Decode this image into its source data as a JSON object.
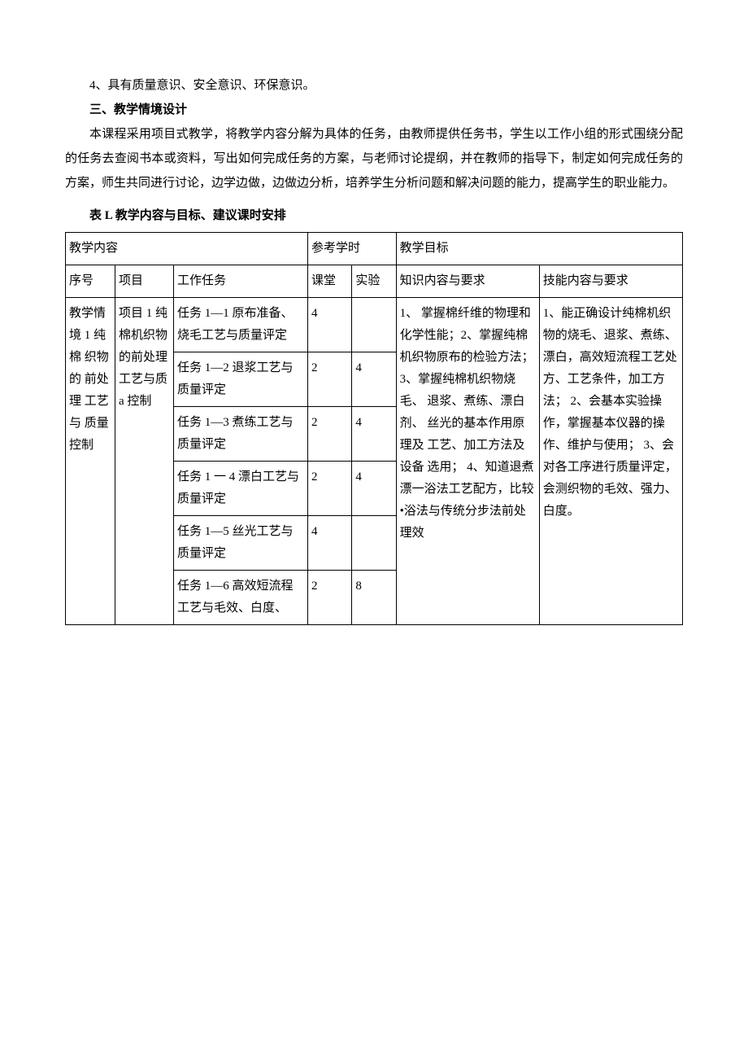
{
  "intro": {
    "line4": "4、具有质量意识、安全意识、环保意识。",
    "heading3": "三、教学情境设计",
    "para": "本课程采用项目式教学，将教学内容分解为具体的任务，由教师提供任务书，学生以工作小组的形式围绕分配的任务去查阅书本或资料，写出如何完成任务的方案，与老师讨论提纲，并在教师的指导下，制定如何完成任务的方案，师生共同进行讨论，边学边做，边做边分析，培养学生分析问题和解决问题的能力，提高学生的职业能力。"
  },
  "caption": {
    "label": "表 L",
    "text": " 教学内容与目标、建议课时安排"
  },
  "headers": {
    "content": "教学内容",
    "hours": "参考学时",
    "goals": "教学目标",
    "seq": "序号",
    "project": "项目",
    "task": "工作任务",
    "class": "课堂",
    "lab": "实验",
    "knowledge": "知识内容与要求",
    "skill": "技能内容与要求"
  },
  "row1": {
    "seq": "教学情境 1 纯 棉 织物 的 前处 理 工艺 与 质量控制",
    "project": "项目 1 纯棉机织物的前处理工艺与质 a 控制",
    "knowledge": "1、 掌握棉纤维的物理和化学性能；2、掌握纯棉机织物原布的检验方法；\n3、掌握纯棉机织物烧毛、\n退浆、煮练、漂白剂、\n丝光的基本作用原理及\n工艺、加工方法及设备\n选用；\n4、知道退煮漂一浴法工艺配方，比较•浴法与传统分步法前处理效",
    "skill": "1、能正确设计纯棉机织物的烧毛、退浆、煮练、漂白，高效短流程工艺处方、工艺条件，加工方法；\n2、会基本实验操作，掌握基本仪器的操作、维护与使用；\n3、会对各工序进行质量评定，会测织物的毛效、强力、白度。",
    "tasks": [
      {
        "name": "任务 1—1\n原布准备、烧毛工艺与质量评定",
        "class": "4",
        "lab": ""
      },
      {
        "name": "任务 1—2\n退浆工艺与质量评定",
        "class": "2",
        "lab": "4"
      },
      {
        "name": "任务 1—3\n煮练工艺与质量评定",
        "class": "2",
        "lab": "4"
      },
      {
        "name": "任务 1 一 4\n漂白工艺与质量评定",
        "class": "2",
        "lab": "4"
      },
      {
        "name": "任务 1—5\n丝光工艺与质量评定",
        "class": "4",
        "lab": ""
      },
      {
        "name": "任务 1—6\n高效短流程工艺与毛效、白度、",
        "class": "2",
        "lab": "8"
      }
    ]
  }
}
